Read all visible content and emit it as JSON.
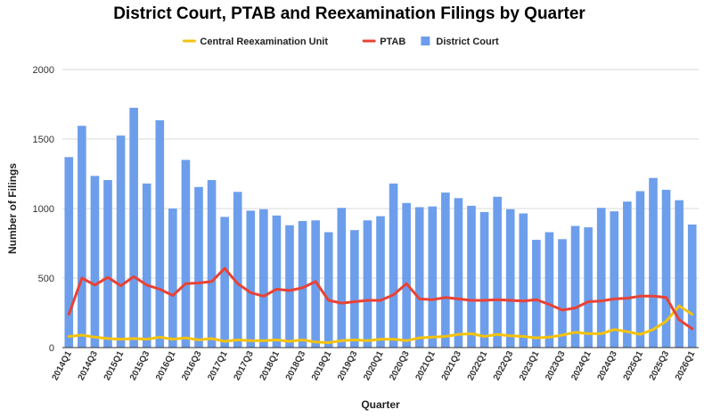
{
  "chart_data": {
    "type": "bar",
    "title": "District Court, PTAB and Reexamination Filings by Quarter",
    "xlabel": "Quarter",
    "ylabel": "Number of Filings",
    "ylim": [
      0,
      2000
    ],
    "yticks": [
      0,
      500,
      1000,
      1500,
      2000
    ],
    "grid": "horizontal",
    "legend_position": "top",
    "categories": [
      "2014Q1",
      "2014Q2",
      "2014Q3",
      "2014Q4",
      "2015Q1",
      "2015Q2",
      "2015Q3",
      "2015Q4",
      "2016Q1",
      "2016Q2",
      "2016Q3",
      "2016Q4",
      "2017Q1",
      "2017Q2",
      "2017Q3",
      "2017Q4",
      "2018Q1",
      "2018Q2",
      "2018Q3",
      "2018Q4",
      "2019Q1",
      "2019Q2",
      "2019Q3",
      "2019Q4",
      "2020Q1",
      "2020Q2",
      "2020Q3",
      "2020Q4",
      "2021Q1",
      "2021Q2",
      "2021Q3",
      "2021Q4",
      "2022Q1",
      "2022Q2",
      "2022Q3",
      "2022Q4",
      "2023Q1",
      "2023Q2",
      "2023Q3",
      "2023Q4",
      "2024Q1",
      "2024Q2",
      "2024Q3",
      "2024Q4",
      "2025Q1",
      "2025Q2",
      "2025Q3",
      "2025Q4",
      "2026Q1"
    ],
    "tick_labels": [
      "2014Q1",
      "2014Q3",
      "2015Q1",
      "2015Q3",
      "2016Q1",
      "2016Q3",
      "2017Q1",
      "2017Q3",
      "2018Q1",
      "2018Q3",
      "2019Q1",
      "2019Q3",
      "2020Q1",
      "2020Q3",
      "2021Q1",
      "2021Q3",
      "2022Q1",
      "2022Q3",
      "2023Q1",
      "2023Q3",
      "2024Q1",
      "2024Q3",
      "2025Q1",
      "2025Q3",
      "2026Q1"
    ],
    "series": [
      {
        "name": "Central Reexamination Unit",
        "kind": "line",
        "color": "#f4c20d",
        "values": [
          80,
          90,
          75,
          65,
          60,
          65,
          60,
          75,
          60,
          70,
          55,
          65,
          45,
          55,
          50,
          50,
          55,
          45,
          55,
          40,
          35,
          50,
          55,
          50,
          60,
          60,
          50,
          70,
          75,
          80,
          95,
          100,
          80,
          95,
          85,
          80,
          70,
          75,
          90,
          110,
          100,
          100,
          130,
          115,
          95,
          130,
          190,
          300,
          240
        ]
      },
      {
        "name": "PTAB",
        "kind": "line",
        "color": "#e94235",
        "values": [
          240,
          500,
          450,
          505,
          445,
          510,
          450,
          420,
          375,
          460,
          465,
          475,
          570,
          460,
          395,
          370,
          420,
          410,
          430,
          475,
          340,
          320,
          330,
          340,
          340,
          380,
          460,
          350,
          345,
          360,
          350,
          340,
          340,
          345,
          340,
          335,
          345,
          310,
          270,
          285,
          330,
          335,
          350,
          355,
          370,
          370,
          360,
          200,
          135
        ]
      },
      {
        "name": "District Court",
        "kind": "bar",
        "color": "#6d9eeb",
        "values": [
          1370,
          1595,
          1235,
          1205,
          1525,
          1725,
          1180,
          1635,
          1000,
          1350,
          1155,
          1205,
          940,
          1120,
          985,
          995,
          950,
          880,
          910,
          915,
          830,
          1005,
          845,
          915,
          945,
          1180,
          1040,
          1010,
          1015,
          1115,
          1075,
          1020,
          975,
          1085,
          995,
          965,
          775,
          830,
          780,
          875,
          865,
          1005,
          980,
          1050,
          1125,
          1220,
          1135,
          1060,
          885
        ]
      }
    ]
  }
}
